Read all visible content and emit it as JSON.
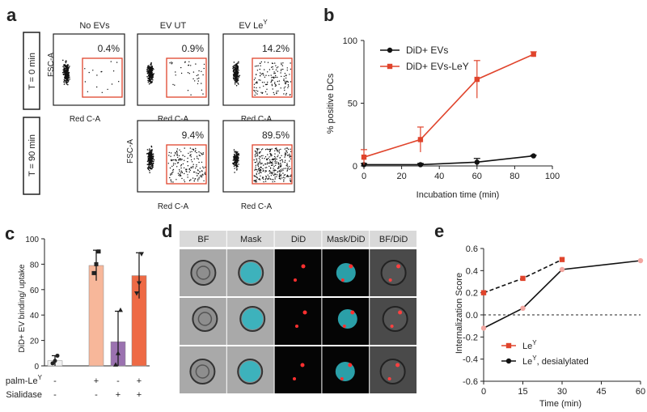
{
  "panel_labels": {
    "a": "a",
    "b": "b",
    "c": "c",
    "d": "d",
    "e": "e"
  },
  "panel_a": {
    "row_labels": [
      "T = 0 min",
      "T = 90 min"
    ],
    "col_titles": [
      "No EVs",
      "EV UT",
      "EV Le"
    ],
    "col_title_sup": "Y",
    "ylabel": "FSC-A",
    "xlabel": "Red C-A",
    "gate_color": "#e0442c",
    "plots": [
      {
        "row": 0,
        "col": 0,
        "percent": "0.4%",
        "spread": 0.05
      },
      {
        "row": 0,
        "col": 1,
        "percent": "0.9%",
        "spread": 0.12
      },
      {
        "row": 0,
        "col": 2,
        "percent": "14.2%",
        "spread": 0.45
      },
      {
        "row": 1,
        "col": 1,
        "percent": "9.4%",
        "spread": 0.55
      },
      {
        "row": 1,
        "col": 2,
        "percent": "89.5%",
        "spread": 1.0
      }
    ]
  },
  "chart_data": [
    {
      "panel": "b",
      "type": "line",
      "xlabel": "Incubation time (min)",
      "ylabel": "% positive DCs",
      "xlim": [
        0,
        100
      ],
      "ylim": [
        0,
        100
      ],
      "xticks": [
        "0",
        "20",
        "40",
        "60",
        "80",
        "100"
      ],
      "yticks": [
        "0",
        "50",
        "100"
      ],
      "legend_position": "top-right",
      "series": [
        {
          "name": "DiD+ EVs",
          "color": "#111111",
          "x": [
            0,
            30,
            60,
            90
          ],
          "y": [
            1,
            1,
            3,
            8
          ],
          "err": [
            1,
            1,
            3,
            0.5
          ]
        },
        {
          "name": "DiD+ EVs-LeY",
          "color": "#e0442c",
          "x": [
            0,
            30,
            60,
            90
          ],
          "y": [
            7,
            21,
            69,
            89
          ],
          "err": [
            6,
            10,
            15,
            2
          ]
        }
      ]
    },
    {
      "panel": "c",
      "type": "bar",
      "ylabel": "DiD+ EV binding/ uptake",
      "ylim": [
        0,
        100
      ],
      "yticks": [
        "0",
        "20",
        "40",
        "60",
        "80",
        "100"
      ],
      "row_labels": [
        "palm-Le",
        "Sialidase"
      ],
      "row_label_sup": "Y",
      "conditions": [
        {
          "palm": "-",
          "sialidase": "-",
          "value": 4,
          "err": 4,
          "color": "#f2f2f2",
          "points": [
            2,
            4,
            8
          ]
        },
        {
          "palm": "+",
          "sialidase": "-",
          "value": 79,
          "err": 12,
          "color": "#f7b79a",
          "points": [
            73,
            80,
            90
          ]
        },
        {
          "palm": "-",
          "sialidase": "+",
          "value": 19,
          "err": 24,
          "color": "#9b72b0",
          "points": [
            1,
            10,
            44
          ]
        },
        {
          "palm": "+",
          "sialidase": "+",
          "value": 71,
          "err": 18,
          "color": "#ee6a45",
          "points": [
            57,
            65,
            88
          ]
        }
      ]
    },
    {
      "panel": "e",
      "type": "line",
      "xlabel": "Time (min)",
      "ylabel": "Internalization Score",
      "xlim": [
        0,
        60
      ],
      "ylim": [
        -0.6,
        0.6
      ],
      "xticks": [
        "0",
        "15",
        "30",
        "45",
        "60"
      ],
      "yticks": [
        "-0.6",
        "-0.4",
        "-0.2",
        "0.0",
        "0.2",
        "0.4",
        "0.6"
      ],
      "legend_position": "bottom-left",
      "series": [
        {
          "name": "Le",
          "sup": "Y",
          "color": "#e0442c",
          "dashed": true,
          "x": [
            0,
            15,
            30
          ],
          "y": [
            0.2,
            0.33,
            0.5
          ]
        },
        {
          "name": "Le",
          "sup": "Y",
          "suffix": ", desialylated",
          "color": "#111111",
          "dashed": false,
          "x": [
            0,
            15,
            30,
            60
          ],
          "y": [
            -0.12,
            0.06,
            0.41,
            0.49
          ]
        }
      ]
    }
  ],
  "panel_d": {
    "columns": [
      "BF",
      "Mask",
      "DiD",
      "Mask/DiD",
      "BF/DiD"
    ],
    "rows": 3
  }
}
